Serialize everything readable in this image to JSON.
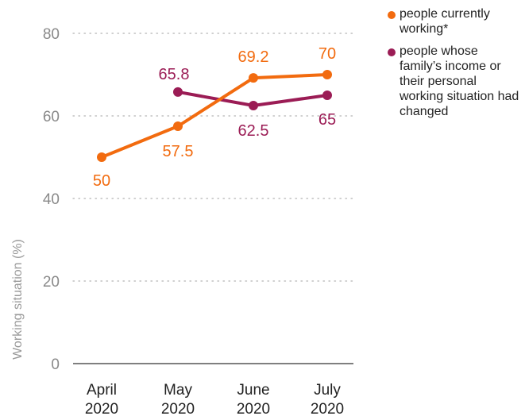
{
  "chart_data": {
    "type": "line",
    "x": [
      "April\n2020",
      "May\n2020",
      "June\n2020",
      "July\n2020"
    ],
    "x_tick_labels": [
      [
        "April",
        "2020"
      ],
      [
        "May",
        "2020"
      ],
      [
        "June",
        "2020"
      ],
      [
        "July",
        "2020"
      ]
    ],
    "ylabel": "Working situation (%)",
    "ylim": [
      0,
      80
    ],
    "yticks": [
      0,
      20,
      40,
      60,
      80
    ],
    "grid": "horizontal-dotted",
    "legend_position": "top-right",
    "series": [
      {
        "name": "people currently working*",
        "color": "#f26b0f",
        "values": [
          50,
          57.5,
          69.2,
          70
        ],
        "labels": [
          "50",
          "57.5",
          "69.2",
          "70"
        ]
      },
      {
        "name": "people whose family’s income or their personal working situation had changed",
        "color": "#9b1c55",
        "values": [
          null,
          65.8,
          62.5,
          65
        ],
        "labels": [
          "",
          "65.8",
          "62.5",
          "65"
        ]
      }
    ]
  },
  "legend": {
    "items": [
      {
        "label": "people currently working*",
        "color": "#f26b0f"
      },
      {
        "label": "people whose family’s income or their personal working situation had changed",
        "color": "#9b1c55"
      }
    ]
  }
}
